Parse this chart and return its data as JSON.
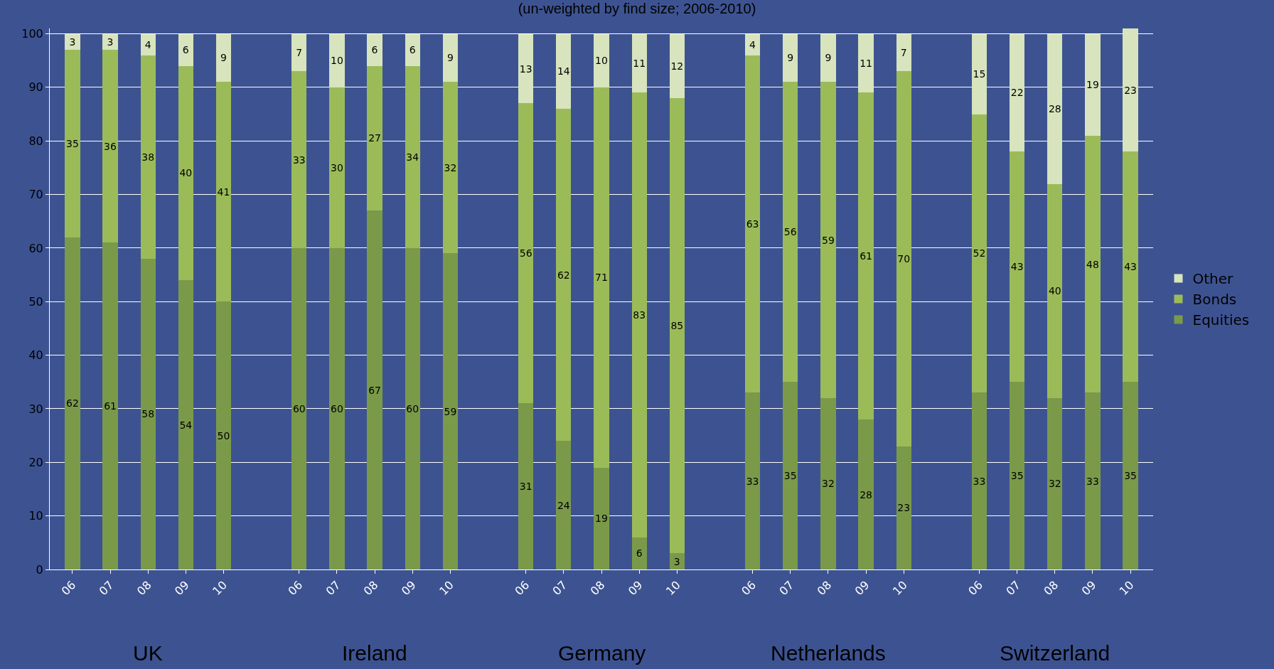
{
  "chart_data": {
    "type": "bar",
    "stacked": true,
    "title": "(un-weighted by find size; 2006-2010)",
    "categories": [
      "06",
      "07",
      "08",
      "09",
      "10",
      null,
      "06",
      "07",
      "08",
      "09",
      "10",
      null,
      "06",
      "07",
      "08",
      "09",
      "10",
      null,
      "06",
      "07",
      "08",
      "09",
      "10",
      null,
      "06",
      "07",
      "08",
      "09",
      "10"
    ],
    "series": [
      {
        "name": "Equities",
        "color": "#7a9a4a",
        "values": [
          62,
          61,
          58,
          54,
          50,
          null,
          60,
          60,
          67,
          60,
          59,
          null,
          31,
          24,
          19,
          6,
          3,
          null,
          33,
          35,
          32,
          28,
          23,
          null,
          33,
          35,
          32,
          33,
          35
        ]
      },
      {
        "name": "Bonds",
        "color": "#9bbb59",
        "values": [
          35,
          36,
          38,
          40,
          41,
          null,
          33,
          30,
          27,
          34,
          32,
          null,
          56,
          62,
          71,
          83,
          85,
          null,
          63,
          56,
          59,
          61,
          70,
          null,
          52,
          43,
          40,
          48,
          43
        ]
      },
      {
        "name": "Other",
        "color": "#d7e4bd",
        "values": [
          3,
          3,
          4,
          6,
          9,
          null,
          7,
          10,
          6,
          6,
          9,
          null,
          13,
          14,
          10,
          11,
          12,
          null,
          4,
          9,
          9,
          11,
          7,
          null,
          15,
          22,
          28,
          19,
          23
        ]
      }
    ],
    "annotations": [
      "UK",
      "Ireland",
      "Germany",
      "Netherlands",
      "Switzerland"
    ],
    "ylim": [
      0,
      101
    ],
    "yticks": [
      0,
      10,
      20,
      30,
      40,
      50,
      60,
      70,
      80,
      90,
      100
    ],
    "grid": "y",
    "legend": "right",
    "data_labels": true
  }
}
